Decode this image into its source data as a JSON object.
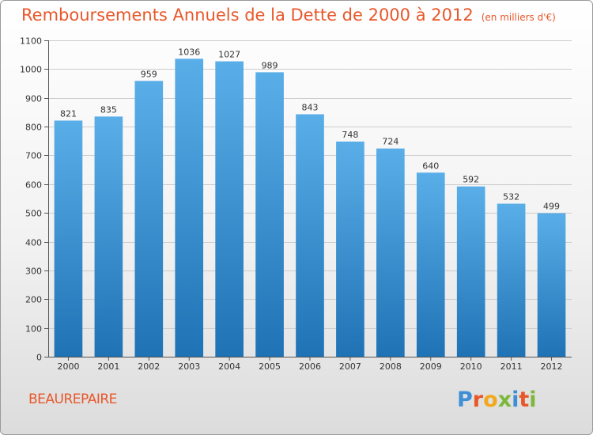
{
  "chart_data": {
    "type": "bar",
    "title": "Remboursements Annuels de la Dette de 2000 à 2012",
    "subtitle": "(en milliers d'€)",
    "xlabel": "",
    "ylabel": "",
    "categories": [
      "2000",
      "2001",
      "2002",
      "2003",
      "2004",
      "2005",
      "2006",
      "2007",
      "2008",
      "2009",
      "2010",
      "2011",
      "2012"
    ],
    "values": [
      821,
      835,
      959,
      1036,
      1027,
      989,
      843,
      748,
      724,
      640,
      592,
      532,
      499
    ],
    "ylim": [
      0,
      1100
    ],
    "yticks": [
      0,
      100,
      200,
      300,
      400,
      500,
      600,
      700,
      800,
      900,
      1000,
      1100
    ],
    "grid": true,
    "colors": {
      "bar_top": "#5aaee8",
      "bar_bottom": "#1f73b5",
      "grid": "#cccccc",
      "title": "#e8572a"
    }
  },
  "footer": {
    "commune": "BEAUREPAIRE"
  },
  "brand": {
    "text": "Proxiti",
    "letters": [
      {
        "ch": "P",
        "color": "#3f8fd6"
      },
      {
        "ch": "r",
        "color": "#e8572a"
      },
      {
        "ch": "o",
        "color": "#f2a81d"
      },
      {
        "ch": "x",
        "color": "#7cb83a"
      },
      {
        "ch": "i",
        "color": "#3f8fd6"
      },
      {
        "ch": "t",
        "color": "#e8572a"
      },
      {
        "ch": "i",
        "color": "#7cb83a"
      }
    ]
  }
}
